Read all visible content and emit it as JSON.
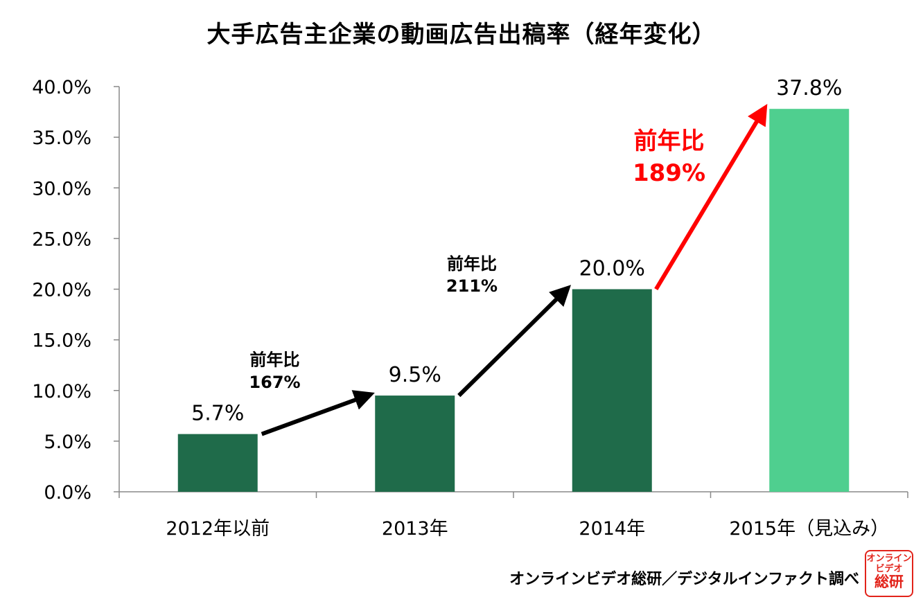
{
  "chart_data": {
    "type": "bar",
    "title": "大手広告主企業の動画広告出稿率（経年変化）",
    "xlabel": "",
    "ylabel": "",
    "categories": [
      "2012年以前",
      "2013年",
      "2014年",
      "2015年（見込み）"
    ],
    "values": [
      5.7,
      9.5,
      20.0,
      37.8
    ],
    "value_labels": [
      "5.7%",
      "9.5%",
      "20.0%",
      "37.8%"
    ],
    "ylim": [
      0,
      40
    ],
    "yticks": [
      0,
      5,
      10,
      15,
      20,
      25,
      30,
      35,
      40
    ],
    "ytick_labels": [
      "0.0%",
      "5.0%",
      "10.0%",
      "15.0%",
      "20.0%",
      "25.0%",
      "30.0%",
      "35.0%",
      "40.0%"
    ],
    "grid": false,
    "bar_colors": [
      "#1f6b4a",
      "#1f6b4a",
      "#1f6b4a",
      "#4fcf8f"
    ],
    "annotations": [
      {
        "from": 0,
        "to": 1,
        "line1": "前年比",
        "line2": "167%",
        "color": "#000000"
      },
      {
        "from": 1,
        "to": 2,
        "line1": "前年比",
        "line2": "211%",
        "color": "#000000"
      },
      {
        "from": 2,
        "to": 3,
        "line1": "前年比",
        "line2": "189%",
        "color": "#ff0000"
      }
    ]
  },
  "source": "オンラインビデオ総研／デジタルインファクト調べ",
  "stamp": {
    "line1": "オンライン",
    "line2": "ビデオ",
    "line3": "総研"
  }
}
